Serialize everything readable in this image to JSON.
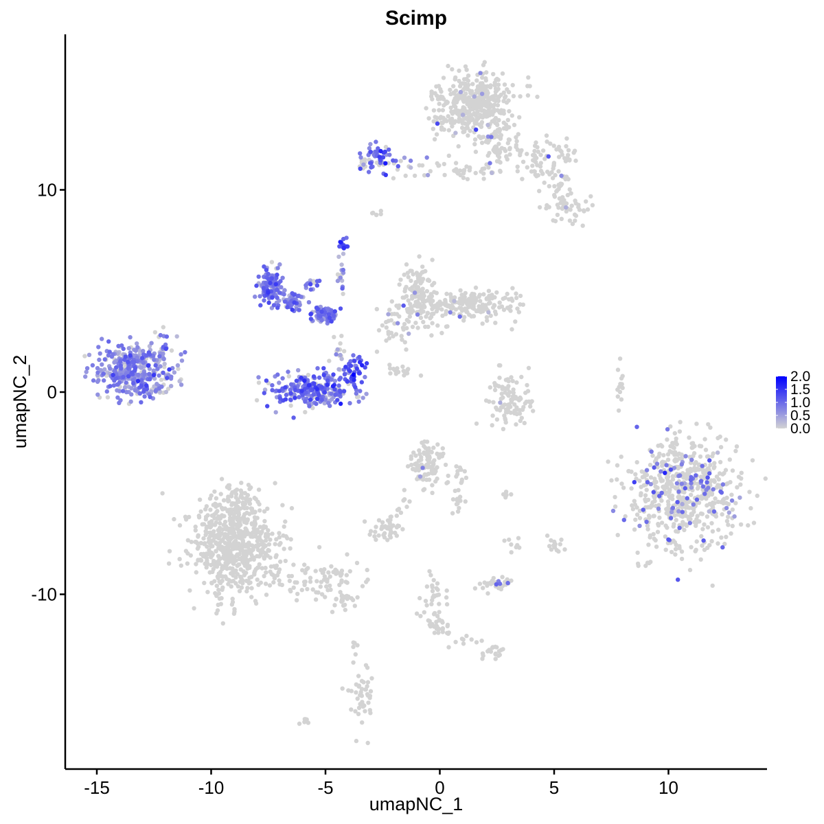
{
  "chart_data": {
    "type": "scatter",
    "title": "Scimp",
    "xlabel": "umapNC_1",
    "ylabel": "umapNC_2",
    "xlim": [
      -16.5,
      14.5
    ],
    "ylim": [
      -17.9,
      17.8
    ],
    "x_ticks": [
      -15,
      -10,
      -5,
      0,
      5,
      10
    ],
    "x_tick_labels": [
      "-15",
      "-10",
      "-5",
      "0",
      "5",
      "10"
    ],
    "y_ticks": [
      -10,
      0,
      10
    ],
    "y_tick_labels": [
      "-10",
      "0",
      "10"
    ],
    "grid": false,
    "legend": {
      "position": "right",
      "type": "colorbar",
      "min": 0.0,
      "max": 2.0,
      "labels": [
        "2.0",
        "1.5",
        "1.0",
        "0.5",
        "0.0"
      ],
      "low_color": "#d3d3d3",
      "high_color": "#0000ff"
    },
    "clusters": [
      {
        "cx": -13.4,
        "cy": 1.1,
        "sx": 0.75,
        "sy": 0.65,
        "n": 380,
        "expr_mean": 0.7,
        "expr_frac": 0.85
      },
      {
        "cx": -11.9,
        "cy": 2.2,
        "sx": 0.3,
        "sy": 0.35,
        "n": 25,
        "expr_mean": 0.6,
        "expr_frac": 0.6
      },
      {
        "cx": -12.5,
        "cy": 0.0,
        "sx": 0.2,
        "sy": 0.1,
        "n": 15,
        "expr_mean": 0.6,
        "expr_frac": 0.6
      },
      {
        "cx": -7.4,
        "cy": 5.2,
        "sx": 0.28,
        "sy": 0.5,
        "n": 120,
        "expr_mean": 0.8,
        "expr_frac": 0.9
      },
      {
        "cx": -6.5,
        "cy": 4.5,
        "sx": 0.35,
        "sy": 0.25,
        "n": 50,
        "expr_mean": 0.8,
        "expr_frac": 0.85
      },
      {
        "cx": -5.0,
        "cy": 3.8,
        "sx": 0.35,
        "sy": 0.2,
        "n": 70,
        "expr_mean": 0.8,
        "expr_frac": 0.9
      },
      {
        "cx": -5.5,
        "cy": 5.3,
        "sx": 0.2,
        "sy": 0.15,
        "n": 15,
        "expr_mean": 0.8,
        "expr_frac": 0.8
      },
      {
        "cx": -4.2,
        "cy": 7.3,
        "sx": 0.12,
        "sy": 0.2,
        "n": 12,
        "expr_mean": 1.2,
        "expr_frac": 1.0
      },
      {
        "cx": -4.3,
        "cy": 5.8,
        "sx": 0.08,
        "sy": 0.6,
        "n": 15,
        "expr_mean": 0.6,
        "expr_frac": 0.6
      },
      {
        "cx": -4.4,
        "cy": 2.2,
        "sx": 0.1,
        "sy": 0.6,
        "n": 15,
        "expr_mean": 0.3,
        "expr_frac": 0.2
      },
      {
        "cx": -5.6,
        "cy": 0.1,
        "sx": 0.9,
        "sy": 0.45,
        "n": 240,
        "expr_mean": 0.9,
        "expr_frac": 0.85
      },
      {
        "cx": -3.8,
        "cy": 0.9,
        "sx": 0.22,
        "sy": 0.5,
        "n": 50,
        "expr_mean": 1.1,
        "expr_frac": 0.95
      },
      {
        "cx": -2.8,
        "cy": 11.6,
        "sx": 0.3,
        "sy": 0.35,
        "n": 45,
        "expr_mean": 1.0,
        "expr_frac": 0.8
      },
      {
        "cx": -3.3,
        "cy": 11.3,
        "sx": 0.15,
        "sy": 0.15,
        "n": 10,
        "expr_mean": 0.2,
        "expr_frac": 0.1
      },
      {
        "cx": -1.6,
        "cy": 11.3,
        "sx": 0.6,
        "sy": 0.1,
        "n": 15,
        "expr_mean": 0.8,
        "expr_frac": 0.5
      },
      {
        "cx": -2.7,
        "cy": 8.8,
        "sx": 0.15,
        "sy": 0.1,
        "n": 6,
        "expr_mean": 0.0,
        "expr_frac": 0.0
      },
      {
        "cx": 1.5,
        "cy": 14.2,
        "sx": 0.85,
        "sy": 0.8,
        "n": 420,
        "expr_mean": 0.5,
        "expr_frac": 0.02
      },
      {
        "cx": 2.5,
        "cy": 12.2,
        "sx": 0.5,
        "sy": 0.6,
        "n": 70,
        "expr_mean": 0.5,
        "expr_frac": 0.02
      },
      {
        "cx": 1.0,
        "cy": 11.0,
        "sx": 1.0,
        "sy": 0.25,
        "n": 45,
        "expr_mean": 0.5,
        "expr_frac": 0.03
      },
      {
        "cx": 4.3,
        "cy": 11.4,
        "sx": 0.6,
        "sy": 0.6,
        "n": 50,
        "expr_mean": 0.5,
        "expr_frac": 0.02
      },
      {
        "cx": 5.2,
        "cy": 10.4,
        "sx": 0.3,
        "sy": 0.5,
        "n": 30,
        "expr_mean": 0.5,
        "expr_frac": 0.02
      },
      {
        "cx": 5.6,
        "cy": 9.2,
        "sx": 0.5,
        "sy": 0.4,
        "n": 50,
        "expr_mean": 0.5,
        "expr_frac": 0.03
      },
      {
        "cx": 5.6,
        "cy": 11.8,
        "sx": 0.3,
        "sy": 0.3,
        "n": 15,
        "expr_mean": 0.5,
        "expr_frac": 0.0
      },
      {
        "cx": -1.0,
        "cy": 5.3,
        "sx": 0.35,
        "sy": 0.55,
        "n": 60,
        "expr_mean": 0.5,
        "expr_frac": 0.05
      },
      {
        "cx": -0.8,
        "cy": 4.2,
        "sx": 0.5,
        "sy": 0.45,
        "n": 90,
        "expr_mean": 0.5,
        "expr_frac": 0.05
      },
      {
        "cx": 1.5,
        "cy": 4.3,
        "sx": 1.0,
        "sy": 0.35,
        "n": 180,
        "expr_mean": 0.5,
        "expr_frac": 0.02
      },
      {
        "cx": -2.0,
        "cy": 3.0,
        "sx": 0.45,
        "sy": 0.7,
        "n": 35,
        "expr_mean": 0.6,
        "expr_frac": 0.15
      },
      {
        "cx": 2.9,
        "cy": -0.3,
        "sx": 0.5,
        "sy": 0.7,
        "n": 70,
        "expr_mean": 0.5,
        "expr_frac": 0.01
      },
      {
        "cx": 3.3,
        "cy": -0.7,
        "sx": 0.4,
        "sy": 0.2,
        "n": 30,
        "expr_mean": 0.5,
        "expr_frac": 0.0
      },
      {
        "cx": -1.6,
        "cy": 1.0,
        "sx": 0.45,
        "sy": 0.15,
        "n": 15,
        "expr_mean": 0.5,
        "expr_frac": 0.0
      },
      {
        "cx": 7.9,
        "cy": 0.2,
        "sx": 0.08,
        "sy": 0.5,
        "n": 14,
        "expr_mean": 0.5,
        "expr_frac": 0.0
      },
      {
        "cx": 10.7,
        "cy": -5.0,
        "sx": 1.2,
        "sy": 1.3,
        "n": 620,
        "expr_mean": 0.9,
        "expr_frac": 0.13
      },
      {
        "cx": -0.5,
        "cy": -3.6,
        "sx": 0.45,
        "sy": 0.55,
        "n": 100,
        "expr_mean": 0.7,
        "expr_frac": 0.02
      },
      {
        "cx": 0.8,
        "cy": -4.8,
        "sx": 0.2,
        "sy": 0.6,
        "n": 25,
        "expr_mean": 0.5,
        "expr_frac": 0.0
      },
      {
        "cx": -2.4,
        "cy": -6.8,
        "sx": 0.35,
        "sy": 0.25,
        "n": 40,
        "expr_mean": 0.5,
        "expr_frac": 0.0
      },
      {
        "cx": -1.6,
        "cy": -5.5,
        "sx": 0.12,
        "sy": 0.5,
        "n": 10,
        "expr_mean": 0.5,
        "expr_frac": 0.0
      },
      {
        "cx": -8.9,
        "cy": -7.6,
        "sx": 1.0,
        "sy": 1.2,
        "n": 620,
        "expr_mean": 0.5,
        "expr_frac": 0.0
      },
      {
        "cx": -9.0,
        "cy": -5.8,
        "sx": 0.45,
        "sy": 0.5,
        "n": 80,
        "expr_mean": 0.5,
        "expr_frac": 0.0
      },
      {
        "cx": -5.5,
        "cy": -9.3,
        "sx": 1.2,
        "sy": 0.55,
        "n": 90,
        "expr_mean": 0.5,
        "expr_frac": 0.0
      },
      {
        "cx": -4.3,
        "cy": -10.2,
        "sx": 0.3,
        "sy": 0.2,
        "n": 20,
        "expr_mean": 0.5,
        "expr_frac": 0.0
      },
      {
        "cx": 2.4,
        "cy": -9.5,
        "sx": 0.4,
        "sy": 0.15,
        "n": 30,
        "expr_mean": 1.0,
        "expr_frac": 0.15
      },
      {
        "cx": -0.2,
        "cy": -10.9,
        "sx": 0.35,
        "sy": 0.6,
        "n": 35,
        "expr_mean": 0.5,
        "expr_frac": 0.0
      },
      {
        "cx": -0.3,
        "cy": -9.6,
        "sx": 0.15,
        "sy": 0.5,
        "n": 10,
        "expr_mean": 0.5,
        "expr_frac": 0.0
      },
      {
        "cx": 2.3,
        "cy": -12.9,
        "sx": 0.25,
        "sy": 0.2,
        "n": 18,
        "expr_mean": 0.5,
        "expr_frac": 0.0
      },
      {
        "cx": 1.2,
        "cy": -12.2,
        "sx": 0.5,
        "sy": 0.2,
        "n": 8,
        "expr_mean": 0.5,
        "expr_frac": 0.0
      },
      {
        "cx": 0.1,
        "cy": -11.8,
        "sx": 0.2,
        "sy": 0.3,
        "n": 15,
        "expr_mean": 0.5,
        "expr_frac": 0.0
      },
      {
        "cx": -3.4,
        "cy": -15.3,
        "sx": 0.25,
        "sy": 0.7,
        "n": 45,
        "expr_mean": 0.5,
        "expr_frac": 0.0
      },
      {
        "cx": -3.7,
        "cy": -12.6,
        "sx": 0.1,
        "sy": 0.4,
        "n": 6,
        "expr_mean": 0.5,
        "expr_frac": 0.0
      },
      {
        "cx": -5.9,
        "cy": -16.3,
        "sx": 0.12,
        "sy": 0.1,
        "n": 6,
        "expr_mean": 0.5,
        "expr_frac": 0.0
      },
      {
        "cx": 2.9,
        "cy": -5.1,
        "sx": 0.08,
        "sy": 0.1,
        "n": 5,
        "expr_mean": 0.5,
        "expr_frac": 0.0
      },
      {
        "cx": 5.0,
        "cy": -7.5,
        "sx": 0.2,
        "sy": 0.2,
        "n": 15,
        "expr_mean": 0.5,
        "expr_frac": 0.0
      },
      {
        "cx": 3.2,
        "cy": -7.6,
        "sx": 0.2,
        "sy": 0.2,
        "n": 8,
        "expr_mean": 0.5,
        "expr_frac": 0.0
      },
      {
        "cx": -11.2,
        "cy": -15.4,
        "sx": 0.1,
        "sy": 0.1,
        "n": 0,
        "expr_mean": 0.5,
        "expr_frac": 0.0
      }
    ]
  }
}
